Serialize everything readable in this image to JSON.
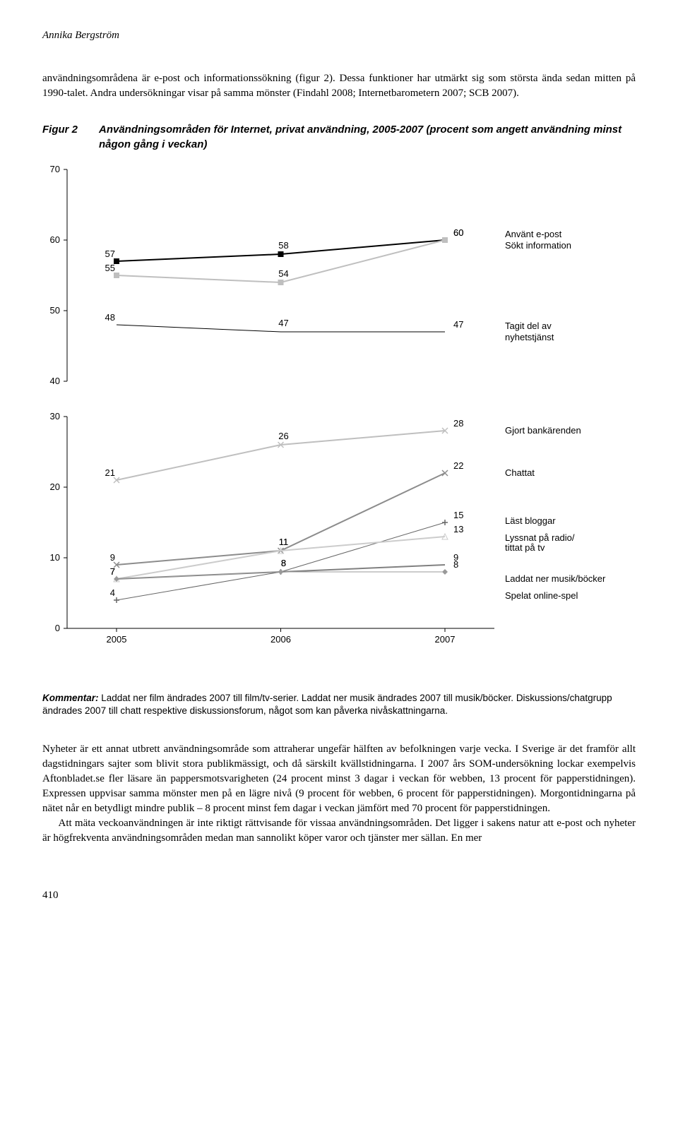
{
  "header": {
    "author": "Annika Bergström"
  },
  "intro": "användningsområdena är e-post och informationssökning (figur 2). Dessa funktioner har utmärkt sig som största ända sedan mitten på 1990-talet. Andra undersökningar visar på samma mönster (Findahl 2008; Internetbarometern 2007; SCB 2007).",
  "figure": {
    "label": "Figur 2",
    "caption": "Användningsområden för Internet, privat användning, 2005-2007 (procent som angett användning minst någon gång i veckan)"
  },
  "chart": {
    "type": "line",
    "background": "#ffffff",
    "axis_color": "#000000",
    "tick_color": "#000000",
    "label_fontsize": 13,
    "font_family": "Arial",
    "x_categories": [
      "2005",
      "2006",
      "2007"
    ],
    "panels": [
      {
        "y_min": 40,
        "y_max": 70,
        "y_ticks": [
          40,
          50,
          60,
          70
        ],
        "series": [
          {
            "name": "Använt e-post",
            "color": "#000000",
            "width": 2,
            "marker": "square",
            "values": [
              57,
              58,
              60
            ],
            "label": "Använt e-post"
          },
          {
            "name": "Sökt information",
            "color": "#bfbfbf",
            "width": 2,
            "marker": "square",
            "values": [
              55,
              54,
              60
            ],
            "label": "Sökt information"
          },
          {
            "name": "Tagit del av nyhetstjänst",
            "color": "#000000",
            "width": 1,
            "marker": "none",
            "values": [
              48,
              47,
              47
            ],
            "label": "Tagit del av nyhetstjänst"
          }
        ]
      },
      {
        "y_min": 0,
        "y_max": 30,
        "y_ticks": [
          0,
          10,
          20,
          30
        ],
        "series": [
          {
            "name": "Gjort bankärenden",
            "color": "#bfbfbf",
            "width": 2,
            "marker": "x",
            "values": [
              21,
              26,
              28
            ],
            "label": "Gjort bankärenden"
          },
          {
            "name": "Chattat",
            "color": "#8c8c8c",
            "width": 2,
            "marker": "x",
            "values": [
              9,
              11,
              22
            ],
            "label": "Chattat"
          },
          {
            "name": "Läst bloggar",
            "color": "#666666",
            "width": 1,
            "marker": "plus",
            "values": [
              4,
              8,
              15
            ],
            "label": "Läst bloggar"
          },
          {
            "name": "Lyssnat på radio/tittat på tv",
            "color": "#cccccc",
            "width": 2,
            "marker": "triangle",
            "values": [
              7,
              11,
              13
            ],
            "label": "Lyssnat på radio/\ntittat på tv"
          },
          {
            "name": "Laddat ner musik/böcker",
            "color": "#808080",
            "width": 2,
            "marker": "none",
            "values": [
              7,
              8,
              9
            ],
            "label": "Laddat ner musik/böcker"
          },
          {
            "name": "Spelat online-spel",
            "color": "#999999",
            "width": 1,
            "marker": "diamond",
            "values": [
              7,
              8,
              8
            ],
            "label": "Spelat online-spel"
          }
        ]
      }
    ]
  },
  "kommentar": {
    "label": "Kommentar:",
    "text": " Laddat ner film ändrades 2007 till film/tv-serier. Laddat ner musik ändrades 2007 till musik/böcker. Diskussions/chatgrupp ändrades 2007 till chatt respektive diskussionsforum, något som kan påverka nivåskattningarna."
  },
  "body": {
    "p1": "Nyheter är ett annat utbrett användningsområde som attraherar ungefär hälften av befolkningen varje vecka. I Sverige är det framför allt dagstidningars sajter som blivit stora publikmässigt, och då särskilt kvällstidningarna. I 2007 års SOM-undersökning lockar exempelvis Aftonbladet.se fler läsare än pappersmotsvarigheten (24 procent minst 3 dagar i veckan för webben, 13 procent för papperstidningen). Expressen uppvisar samma mönster men på en lägre nivå (9 procent för webben, 6 procent för papperstidningen). Morgontidningarna på nätet når en betydligt mindre publik – 8 procent minst fem dagar i veckan jämfört med 70 procent för papperstidningen.",
    "p2": "Att mäta veckoanvändningen är inte riktigt rättvisande för vissaa användningsområden. Det ligger i sakens natur att e-post och nyheter är högfrekventa användningsområden medan man sannolikt köper varor och tjänster mer sällan. En mer"
  },
  "page_number": "410"
}
